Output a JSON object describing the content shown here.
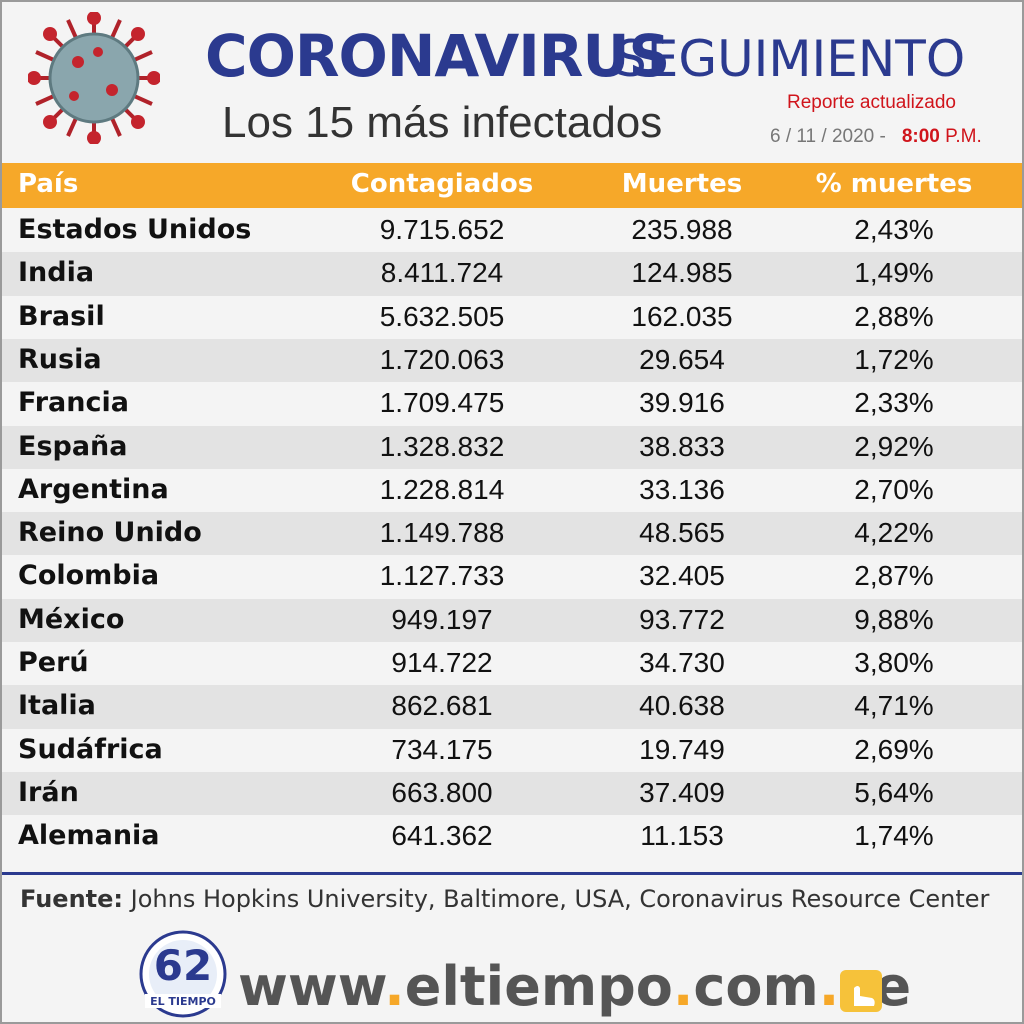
{
  "header": {
    "title_main": "CORONAVIRUS",
    "title_sub": "SEGUIMIENTO",
    "subtitle": "Los 15 más infectados",
    "report_label": "Reporte actualizado",
    "report_date": "6 / 11 / 2020 -",
    "report_time": "8:00",
    "report_ampm": "P.M."
  },
  "table": {
    "columns": [
      "País",
      "Contagiados",
      "Muertes",
      "% muertes"
    ],
    "rows": [
      [
        "Estados Unidos",
        "9.715.652",
        "235.988",
        "2,43%"
      ],
      [
        "India",
        "8.411.724",
        "124.985",
        "1,49%"
      ],
      [
        "Brasil",
        "5.632.505",
        "162.035",
        "2,88%"
      ],
      [
        "Rusia",
        "1.720.063",
        "29.654",
        "1,72%"
      ],
      [
        "Francia",
        "1.709.475",
        "39.916",
        "2,33%"
      ],
      [
        "España",
        "1.328.832",
        "38.833",
        "2,92%"
      ],
      [
        "Argentina",
        "1.228.814",
        "33.136",
        "2,70%"
      ],
      [
        "Reino Unido",
        "1.149.788",
        "48.565",
        "4,22%"
      ],
      [
        "Colombia",
        "1.127.733",
        "32.405",
        "2,87%"
      ],
      [
        "México",
        "949.197",
        "93.772",
        "9,88%"
      ],
      [
        "Perú",
        "914.722",
        "34.730",
        "3,80%"
      ],
      [
        "Italia",
        "862.681",
        "40.638",
        "4,71%"
      ],
      [
        "Sudáfrica",
        "734.175",
        "19.749",
        "2,69%"
      ],
      [
        "Irán",
        "663.800",
        "37.409",
        "5,64%"
      ],
      [
        "Alemania",
        "641.362",
        "11.153",
        "1,74%"
      ]
    ]
  },
  "footer": {
    "source_label": "Fuente:",
    "source_text": "Johns Hopkins University, Baltimore, USA, Coronavirus Resource Center",
    "logo_number": "62",
    "logo_name": "EL TIEMPO",
    "website_parts": [
      "www",
      ".",
      "eltiempo",
      ".",
      "com",
      ".",
      "ve"
    ]
  }
}
